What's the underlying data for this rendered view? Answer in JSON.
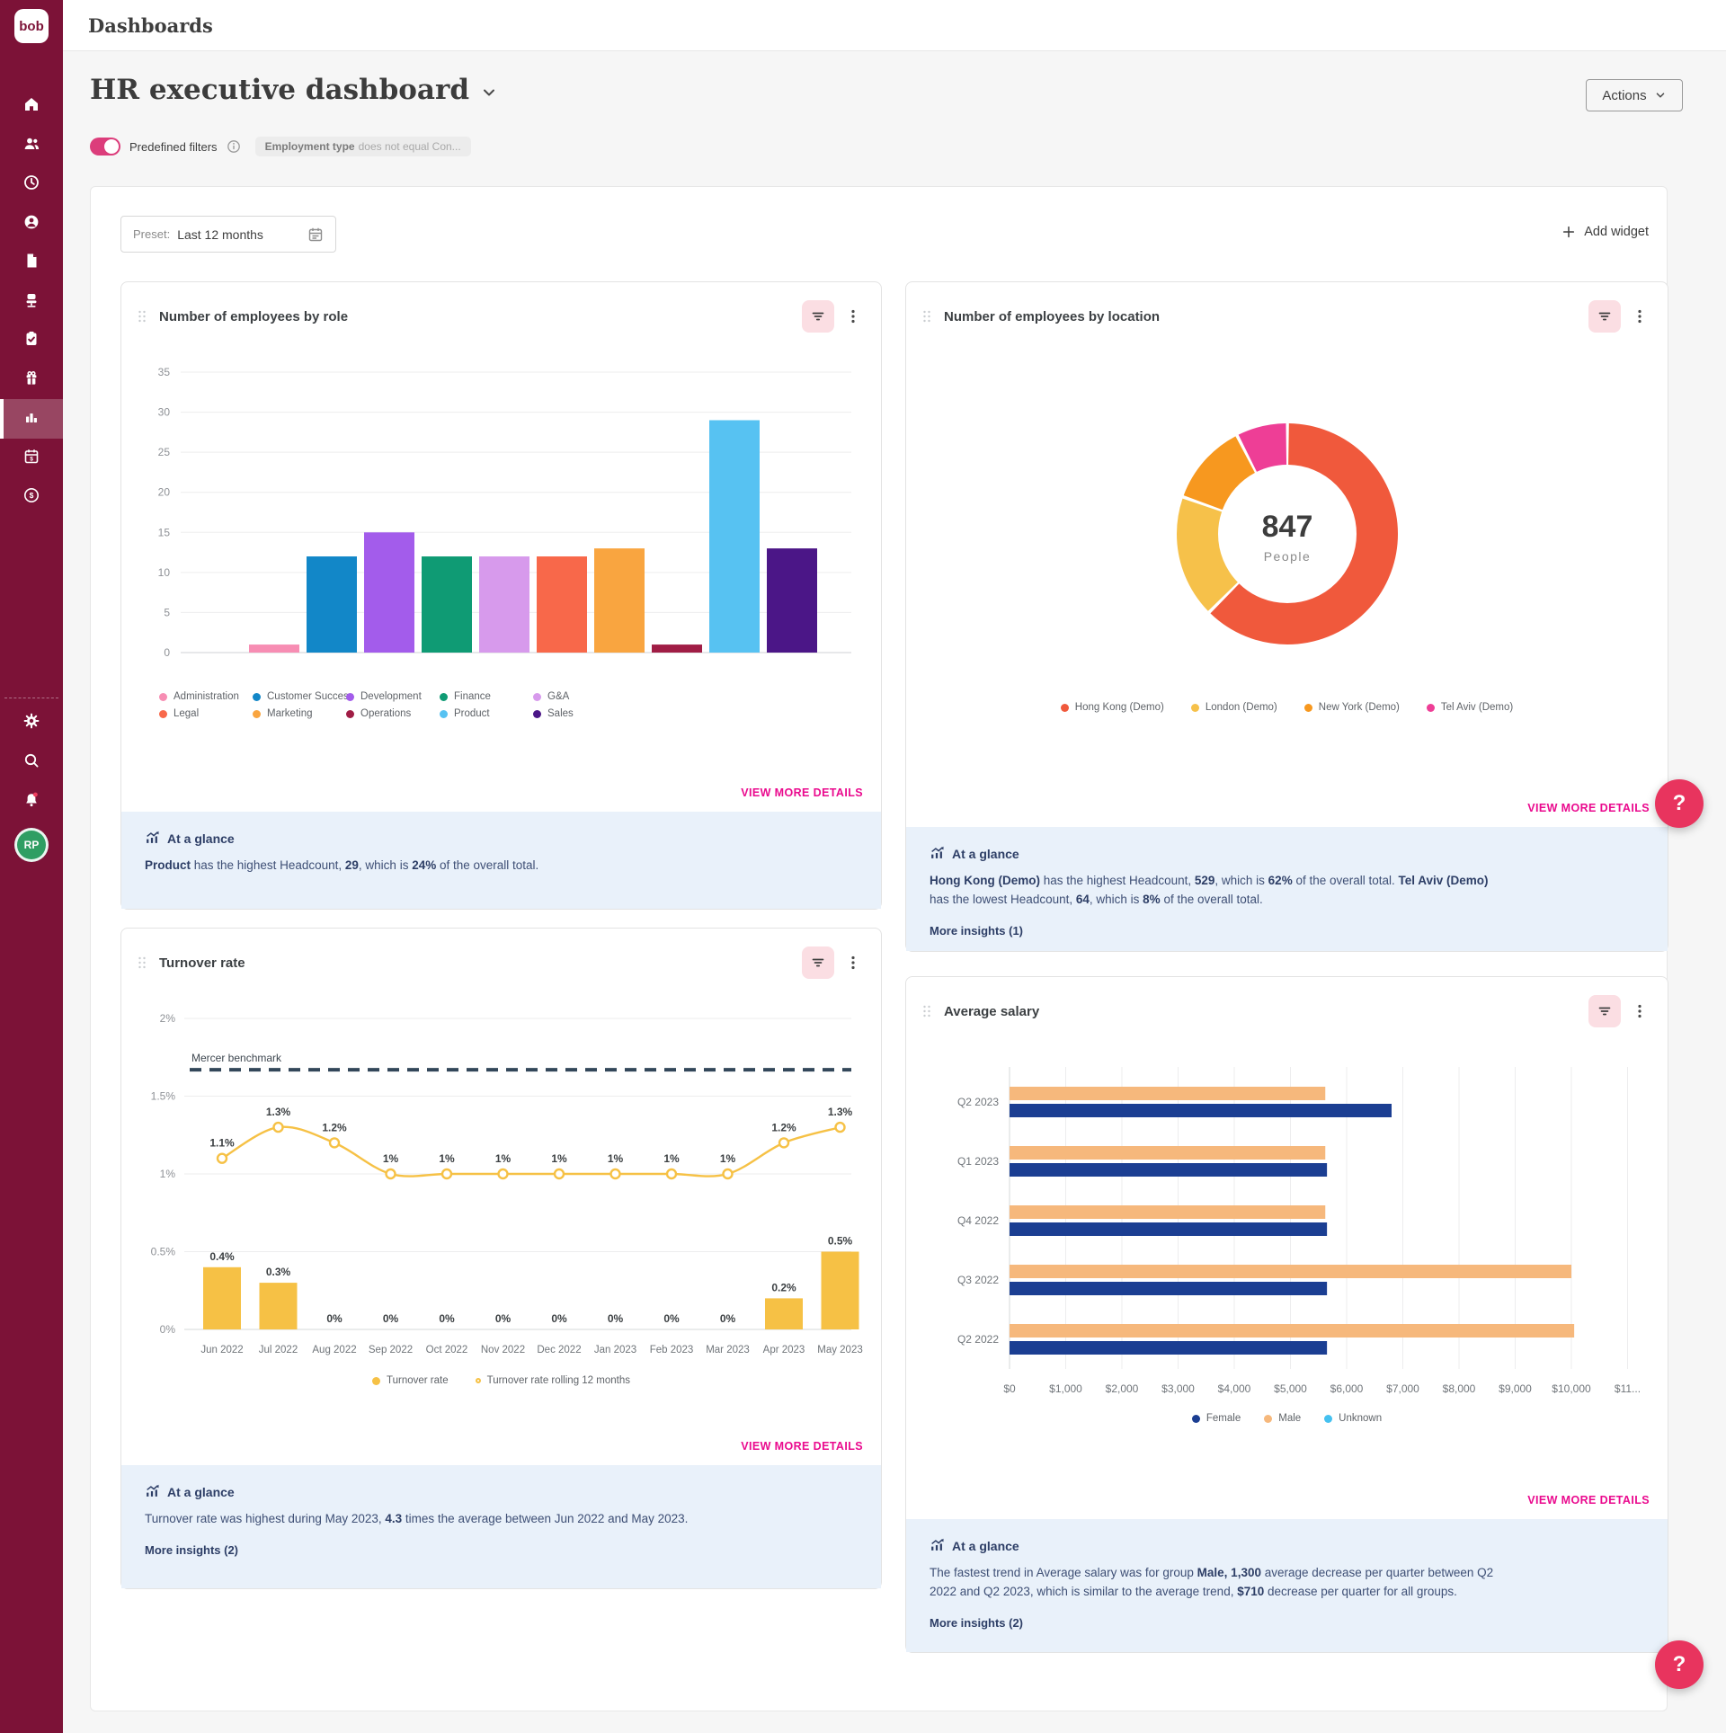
{
  "app": {
    "logo_text": "bob"
  },
  "topbar": {
    "title": "Dashboards"
  },
  "header": {
    "title": "HR executive dashboard",
    "actions_label": "Actions"
  },
  "filters": {
    "toggle_label": "Predefined filters",
    "chip_bold": "Employment type",
    "chip_rest": "does not equal Con..."
  },
  "controls": {
    "preset_label": "Preset:",
    "preset_value": "Last 12 months",
    "add_widget_label": "Add widget"
  },
  "sidebar": {
    "avatar_initials": "RP"
  },
  "help": {
    "label": "?"
  },
  "widgets": {
    "role": {
      "title": "Number of employees by role",
      "view_more": "VIEW MORE DETAILS",
      "glance": {
        "title": "At a glance",
        "parts": [
          {
            "t": "Product",
            "b": true
          },
          {
            "t": " has the highest Headcount, "
          },
          {
            "t": "29",
            "b": true
          },
          {
            "t": ", which is "
          },
          {
            "t": "24%",
            "b": true
          },
          {
            "t": " of the overall total."
          }
        ]
      }
    },
    "location": {
      "title": "Number of employees by location",
      "view_more": "VIEW MORE DETAILS",
      "glance": {
        "title": "At a glance",
        "parts": [
          {
            "t": "Hong Kong (Demo)",
            "b": true
          },
          {
            "t": " has the highest Headcount, "
          },
          {
            "t": "529",
            "b": true
          },
          {
            "t": ", which is "
          },
          {
            "t": "62%",
            "b": true
          },
          {
            "t": " of the overall total. "
          },
          {
            "t": "Tel Aviv (Demo)",
            "b": true
          },
          {
            "t": " has the lowest Headcount, "
          },
          {
            "t": "64",
            "b": true
          },
          {
            "t": ", which is "
          },
          {
            "t": "8%",
            "b": true
          },
          {
            "t": " of the overall total."
          }
        ],
        "more": "More insights (1)"
      }
    },
    "turnover": {
      "title": "Turnover rate",
      "view_more": "VIEW MORE DETAILS",
      "glance": {
        "title": "At a glance",
        "parts": [
          {
            "t": "Turnover rate was highest during May 2023, "
          },
          {
            "t": "4.3",
            "b": true
          },
          {
            "t": " times the average between Jun 2022 and May 2023."
          }
        ],
        "more": "More insights (2)"
      }
    },
    "salary": {
      "title": "Average salary",
      "view_more": "VIEW MORE DETAILS",
      "glance": {
        "title": "At a glance",
        "parts": [
          {
            "t": "The fastest trend in Average salary was for group "
          },
          {
            "t": "Male, 1,300",
            "b": true
          },
          {
            "t": " average decrease per quarter between Q2 2022 and Q2 2023, which is similar to the average trend, "
          },
          {
            "t": "$710",
            "b": true
          },
          {
            "t": " decrease per quarter for all groups."
          }
        ],
        "more": "More insights (2)"
      }
    }
  },
  "chart_data": [
    {
      "id": "role",
      "type": "bar",
      "title": "Number of employees by role",
      "categories": [
        "Administration",
        "Customer Success",
        "Development",
        "Finance",
        "G&A",
        "Legal",
        "Marketing",
        "Operations",
        "Product",
        "Sales"
      ],
      "values": [
        1,
        12,
        15,
        12,
        12,
        12,
        13,
        1,
        29,
        13
      ],
      "colors": [
        "#f78db3",
        "#1287c8",
        "#a35ceb",
        "#0f9b74",
        "#d79aec",
        "#f8684a",
        "#f9a540",
        "#a01d45",
        "#57c2f2",
        "#4b1687"
      ],
      "ylim": [
        0,
        35
      ],
      "yticks": [
        0,
        5,
        10,
        15,
        20,
        25,
        30,
        35
      ],
      "grid": true,
      "legend_position": "bottom"
    },
    {
      "id": "location",
      "type": "pie",
      "subtype": "donut",
      "title": "Number of employees by location",
      "labels": [
        "Hong Kong (Demo)",
        "London (Demo)",
        "New York (Demo)",
        "Tel Aviv (Demo)"
      ],
      "values": [
        529,
        152,
        102,
        64
      ],
      "colors": [
        "#f0593c",
        "#f6c14a",
        "#f7981f",
        "#ee3e96"
      ],
      "total_value": "847",
      "total_label": "People",
      "legend_position": "bottom"
    },
    {
      "id": "turnover",
      "type": "line",
      "subtype": "line+bar",
      "title": "Turnover rate",
      "x": [
        "Jun 2022",
        "Jul 2022",
        "Aug 2022",
        "Sep 2022",
        "Oct 2022",
        "Nov 2022",
        "Dec 2022",
        "Jan 2023",
        "Feb 2023",
        "Mar 2023",
        "Apr 2023",
        "May 2023"
      ],
      "series": [
        {
          "name": "Turnover rate",
          "type": "bar",
          "color": "#f6c145",
          "values": [
            0.4,
            0.3,
            0,
            0,
            0,
            0,
            0,
            0,
            0,
            0,
            0.2,
            0.5
          ],
          "labels": [
            "0.4%",
            "0.3%",
            "0%",
            "0%",
            "0%",
            "0%",
            "0%",
            "0%",
            "0%",
            "0%",
            "0.2%",
            "0.5%"
          ]
        },
        {
          "name": "Turnover rate rolling 12 months",
          "type": "line",
          "color": "#f6c145",
          "values": [
            1.1,
            1.3,
            1.2,
            1,
            1,
            1,
            1,
            1,
            1,
            1,
            1.2,
            1.3
          ],
          "labels": [
            "1.1%",
            "1.3%",
            "1.2%",
            "1%",
            "1%",
            "1%",
            "1%",
            "1%",
            "1%",
            "1%",
            "1.2%",
            "1.3%"
          ]
        }
      ],
      "benchmark": {
        "label": "Mercer benchmark",
        "value": 1.67,
        "color": "#33475a"
      },
      "ylim": [
        0,
        2
      ],
      "yticks": [
        0,
        0.5,
        1,
        1.5,
        2
      ],
      "ytick_labels": [
        "0%",
        "0.5%",
        "1%",
        "1.5%",
        "2%"
      ],
      "grid": true
    },
    {
      "id": "salary",
      "type": "bar",
      "subtype": "horizontal-grouped",
      "title": "Average salary",
      "categories": [
        "Q2 2023",
        "Q1 2023",
        "Q4 2022",
        "Q3 2022",
        "Q2 2022"
      ],
      "series": [
        {
          "name": "Male",
          "color": "#f6b87c",
          "values": [
            5620,
            5620,
            5620,
            10000,
            10050
          ]
        },
        {
          "name": "Female",
          "color": "#1b3e92",
          "values": [
            6800,
            5650,
            5650,
            5650,
            5650
          ]
        }
      ],
      "legend": [
        {
          "name": "Female",
          "color": "#1b3e92"
        },
        {
          "name": "Male",
          "color": "#f6b87c"
        },
        {
          "name": "Unknown",
          "color": "#45c1f0"
        }
      ],
      "xlim": [
        0,
        11000
      ],
      "xtick_labels": [
        "$0",
        "$1,000",
        "$2,000",
        "$3,000",
        "$4,000",
        "$5,000",
        "$6,000",
        "$7,000",
        "$8,000",
        "$9,000",
        "$10,000",
        "$11..."
      ],
      "grid": true,
      "legend_position": "bottom"
    }
  ]
}
